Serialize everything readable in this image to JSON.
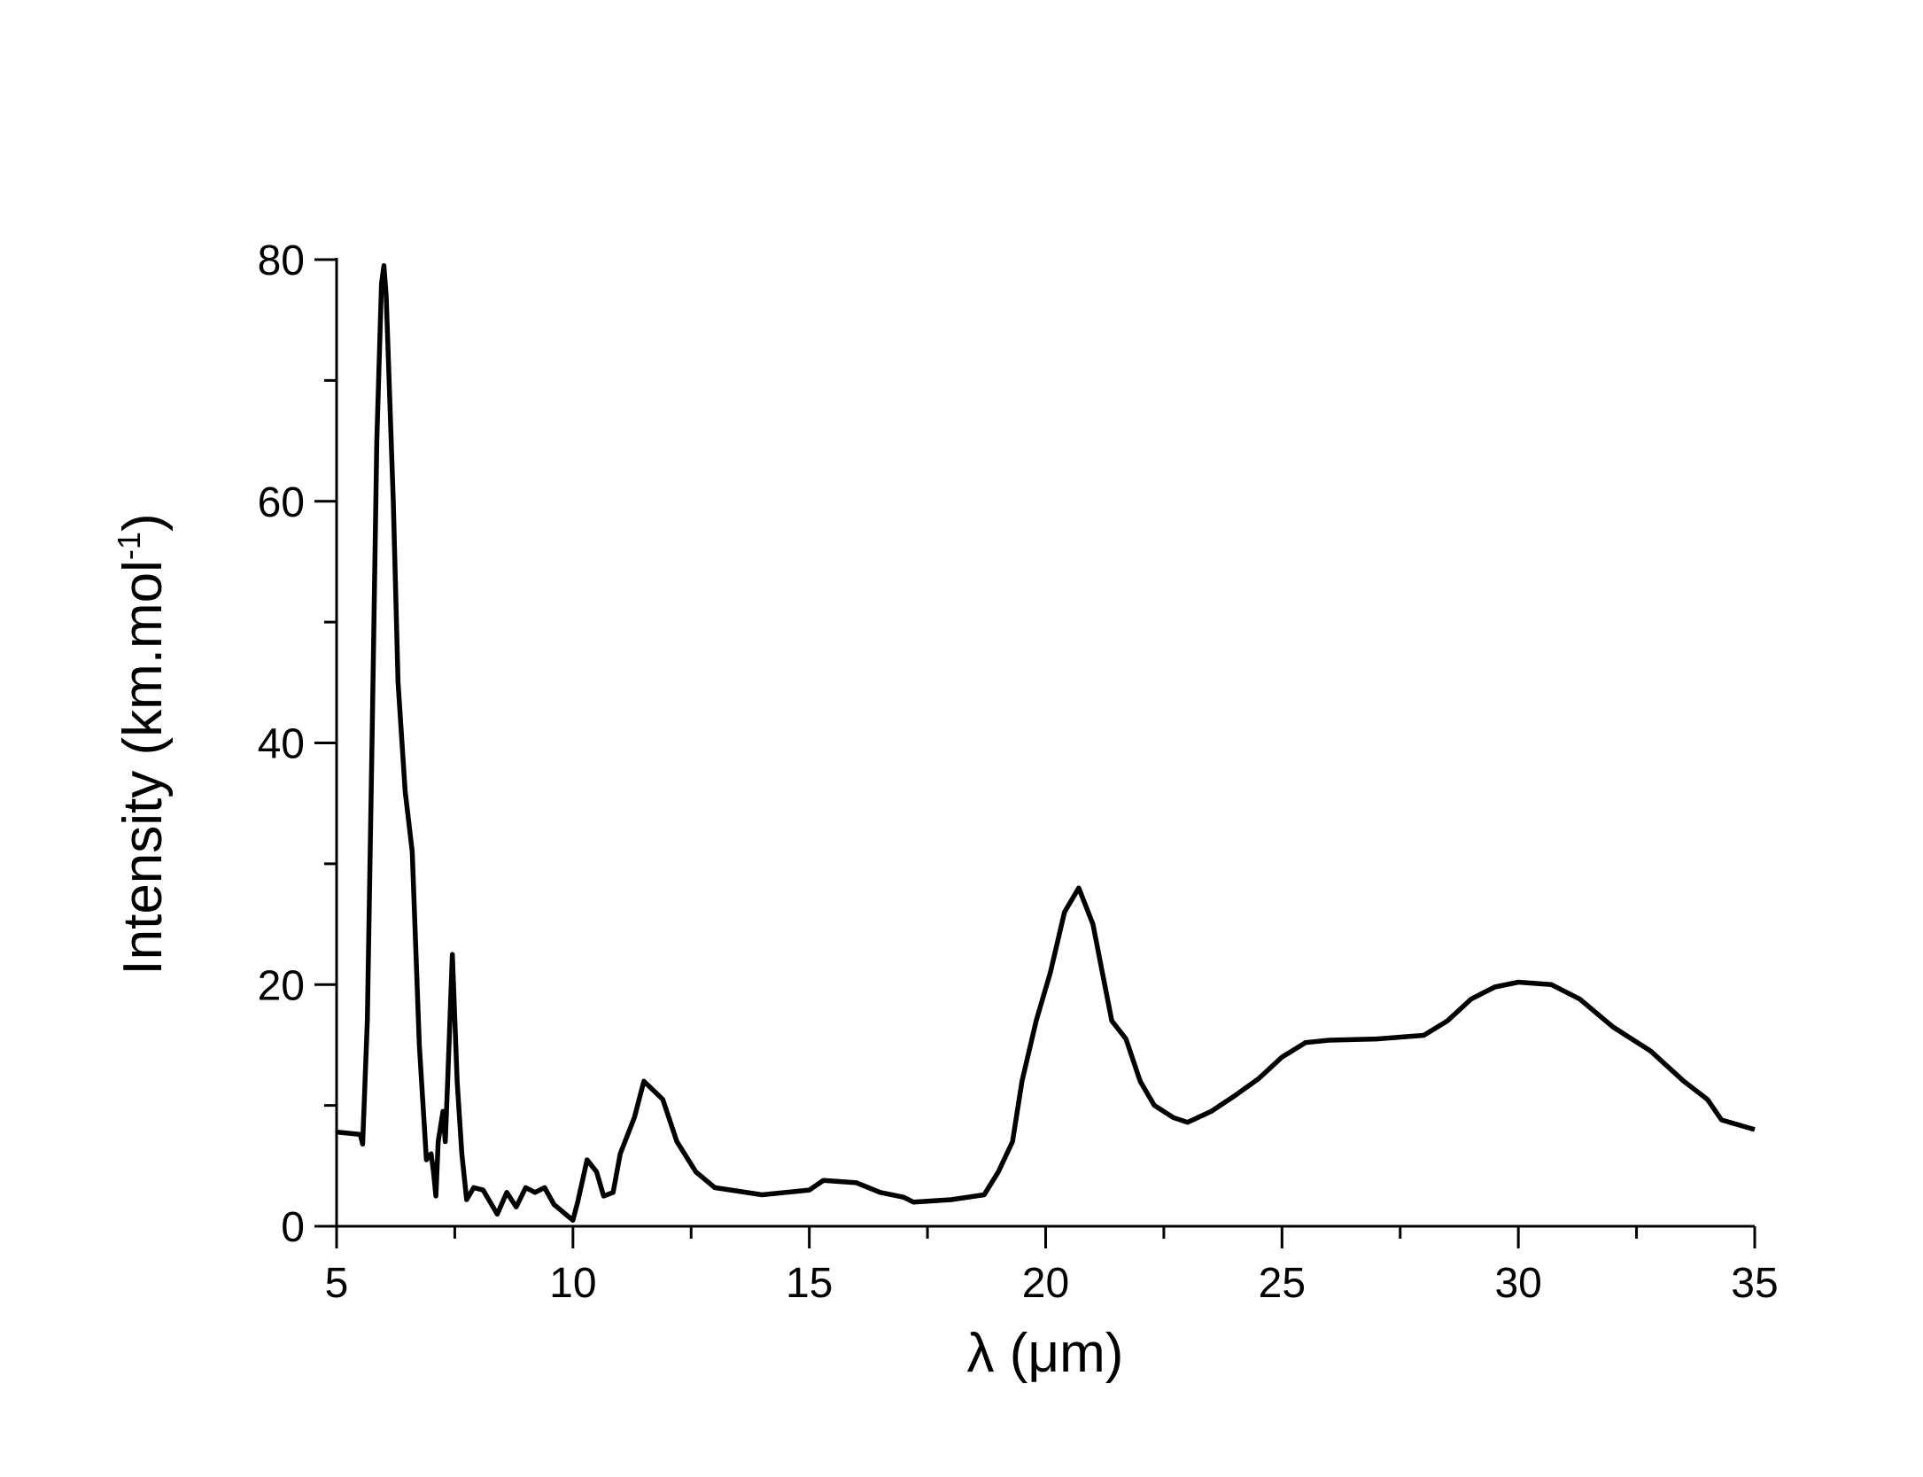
{
  "chart_data": {
    "type": "line",
    "xlabel": "λ (μm)",
    "ylabel": [
      "Intensity (km.mol",
      "-1",
      ")"
    ],
    "xlim": [
      5,
      35
    ],
    "xticks": [
      5,
      10,
      15,
      20,
      25,
      30,
      35
    ],
    "xminorticks": [
      7.5,
      12.5,
      17.5,
      22.5,
      27.5,
      32.5
    ],
    "ylim": [
      0,
      80
    ],
    "yticks": [
      0,
      20,
      40,
      60,
      80
    ],
    "yminorticks": [
      10,
      30,
      50,
      70
    ],
    "grid": false,
    "series": [
      {
        "color": "#000000",
        "x": [
          5,
          5.5,
          5.55,
          5.65,
          5.75,
          5.85,
          5.95,
          6.0,
          6.05,
          6.2,
          6.3,
          6.45,
          6.6,
          6.75,
          6.9,
          7.0,
          7.05,
          7.1,
          7.15,
          7.25,
          7.3,
          7.35,
          7.45,
          7.55,
          7.65,
          7.75,
          7.9,
          8.1,
          8.4,
          8.6,
          8.8,
          9.0,
          9.2,
          9.4,
          9.6,
          10.0,
          10.1,
          10.3,
          10.5,
          10.65,
          10.85,
          11.0,
          11.3,
          11.5,
          11.9,
          12.2,
          12.6,
          13.0,
          14.0,
          15.0,
          15.3,
          16.0,
          16.5,
          17.0,
          17.2,
          18.0,
          18.7,
          19.0,
          19.3,
          19.5,
          19.8,
          20.1,
          20.4,
          20.7,
          21.0,
          21.2,
          21.4,
          21.7,
          22.0,
          22.3,
          22.7,
          23.0,
          23.5,
          24.0,
          24.5,
          25.0,
          25.5,
          26.0,
          27.0,
          28.0,
          28.5,
          29.0,
          29.5,
          30.0,
          30.7,
          31.3,
          32.0,
          32.8,
          33.5,
          34.0,
          34.3,
          35.0
        ],
        "values": [
          7.8,
          7.6,
          6.8,
          17,
          40,
          65,
          78,
          79.5,
          77,
          60,
          45,
          36,
          31,
          15,
          5.5,
          6,
          4.5,
          2.5,
          7,
          9.5,
          7,
          12,
          22.5,
          12,
          6,
          2.2,
          3.2,
          3.0,
          1.0,
          2.8,
          1.6,
          3.2,
          2.8,
          3.2,
          1.8,
          0.5,
          2,
          5.5,
          4.5,
          2.5,
          2.8,
          6,
          9,
          12,
          10.5,
          7,
          4.5,
          3.2,
          2.6,
          3.0,
          3.8,
          3.6,
          2.8,
          2.4,
          2.0,
          2.2,
          2.6,
          4.5,
          7,
          12,
          17,
          21,
          26,
          28,
          25,
          21,
          17,
          15.5,
          12,
          10,
          9,
          8.6,
          9.5,
          10.8,
          12.2,
          14,
          15.2,
          15.4,
          15.5,
          15.8,
          17,
          18.8,
          19.8,
          20.2,
          20,
          18.8,
          16.5,
          14.5,
          12,
          10.5,
          8.8,
          8.0
        ]
      }
    ]
  }
}
